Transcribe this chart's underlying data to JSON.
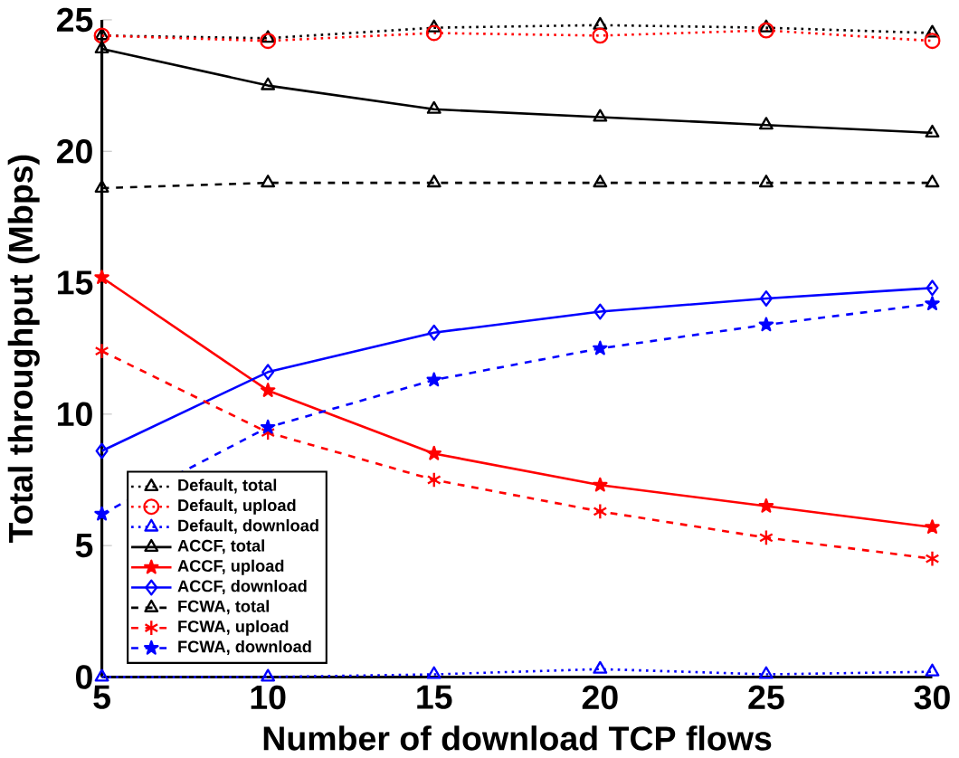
{
  "chart_data": {
    "type": "line",
    "xlabel": "Number of download TCP flows",
    "ylabel": "Total throughput (Mbps)",
    "x": [
      5,
      10,
      15,
      20,
      25,
      30
    ],
    "xlim": [
      5,
      30
    ],
    "xticks": [
      5,
      10,
      15,
      20,
      25,
      30
    ],
    "ylim": [
      0,
      25
    ],
    "yticks": [
      0,
      5,
      10,
      15,
      20,
      25
    ],
    "legend": "bottom left",
    "grid": false,
    "series": [
      {
        "name": "Default, total",
        "color": "#000000",
        "marker": "triangle",
        "line_style": "dotted",
        "values": [
          24.4,
          24.3,
          24.7,
          24.8,
          24.7,
          24.5
        ]
      },
      {
        "name": "Default, upload",
        "color": "#ff0000",
        "marker": "circle",
        "line_style": "dotted",
        "values": [
          24.4,
          24.2,
          24.5,
          24.4,
          24.6,
          24.2
        ]
      },
      {
        "name": "Default, download",
        "color": "#0000ff",
        "marker": "triangle",
        "line_style": "dotted",
        "values": [
          0,
          0,
          0.1,
          0.3,
          0.1,
          0.2
        ]
      },
      {
        "name": "ACCF, total",
        "color": "#000000",
        "marker": "triangle",
        "line_style": "solid",
        "values": [
          23.9,
          22.5,
          21.6,
          21.3,
          21.0,
          20.7
        ]
      },
      {
        "name": "ACCF, upload",
        "color": "#ff0000",
        "marker": "star",
        "line_style": "solid",
        "values": [
          15.2,
          10.9,
          8.5,
          7.3,
          6.5,
          5.7
        ]
      },
      {
        "name": "ACCF, download",
        "color": "#0000ff",
        "marker": "diamond",
        "line_style": "solid",
        "values": [
          8.6,
          11.6,
          13.1,
          13.9,
          14.4,
          14.8
        ]
      },
      {
        "name": "FCWA, total",
        "color": "#000000",
        "marker": "triangle",
        "line_style": "dashed",
        "values": [
          18.6,
          18.8,
          18.8,
          18.8,
          18.8,
          18.8
        ]
      },
      {
        "name": "FCWA, upload",
        "color": "#ff0000",
        "marker": "cross",
        "line_style": "dashed",
        "values": [
          12.4,
          9.3,
          7.5,
          6.3,
          5.3,
          4.5
        ]
      },
      {
        "name": "FCWA, download",
        "color": "#0000ff",
        "marker": "star",
        "line_style": "dashed",
        "values": [
          6.2,
          9.5,
          11.3,
          12.5,
          13.4,
          14.2
        ]
      }
    ]
  }
}
